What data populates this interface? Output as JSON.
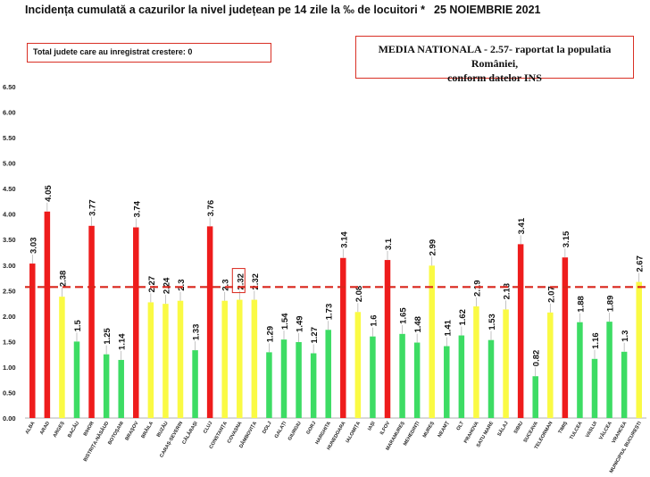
{
  "header": {
    "title": "Incidența cumulată a cazurilor la nivel județean pe 14 zile la ‰ de locuitori *",
    "date": "25 NOIEMBRIE 2021"
  },
  "notes": {
    "increase_box": "Total judete care au inregistrat crestere: 0",
    "national_line1": "MEDIA NATIONALA - 2.57-  raportat la populatia României,",
    "national_line2": "conform datelor INS"
  },
  "colors": {
    "red": "#ee1c1c",
    "yellow": "#fafa44",
    "green": "#3ddc64",
    "reference_line": "#d9261c",
    "axis_text": "#222222"
  },
  "chart_data": {
    "type": "bar",
    "categories": [
      "ALBA",
      "ARAD",
      "ARGEȘ",
      "BACĂU",
      "BIHOR",
      "BISTRIȚA-NĂSĂUD",
      "BOTOȘANI",
      "BRAȘOV",
      "BRĂILA",
      "BUZĂU",
      "CARAȘ-SEVERIN",
      "CĂLĂRAȘI",
      "CLUJ",
      "CONSTANȚA",
      "COVASNA",
      "DÂMBOVIȚA",
      "DOLJ",
      "GALAȚI",
      "GIURGIU",
      "GORJ",
      "HARGHITA",
      "HUNEDOARA",
      "IALOMIȚA",
      "IAȘI",
      "ILFOV",
      "MARAMUREȘ",
      "MEHEDINȚI",
      "MUREȘ",
      "NEAMȚ",
      "OLT",
      "PRAHOVA",
      "SATU MARE",
      "SĂLAJ",
      "SIBIU",
      "SUCEAVA",
      "TELEORMAN",
      "TIMIȘ",
      "TULCEA",
      "VASLUI",
      "VÂLCEA",
      "VRANCEA",
      "MUNICIPIUL BUCUREȘTI"
    ],
    "values": [
      3.03,
      4.05,
      2.38,
      1.5,
      3.77,
      1.25,
      1.14,
      3.74,
      2.27,
      2.24,
      2.3,
      1.33,
      3.76,
      2.3,
      2.32,
      2.32,
      1.29,
      1.54,
      1.49,
      1.27,
      1.73,
      3.14,
      2.08,
      1.6,
      3.1,
      1.65,
      1.48,
      2.99,
      1.41,
      1.62,
      2.19,
      1.53,
      2.13,
      3.41,
      0.82,
      2.07,
      3.15,
      1.88,
      1.16,
      1.89,
      1.3,
      2.67
    ],
    "value_labels": [
      "3.03",
      "4.05",
      "2.38",
      "1.5",
      "3.77",
      "1.25",
      "1.14",
      "3.74",
      "2.27",
      "2.24",
      "2.3",
      "1.33",
      "3.76",
      "2.3",
      "2.32",
      "2.32",
      "1.29",
      "1.54",
      "1.49",
      "1.27",
      "1.73",
      "3.14",
      "2.08",
      "1.6",
      "3.1",
      "1.65",
      "1.48",
      "2.99",
      "1.41",
      "1.62",
      "2.19",
      "1.53",
      "2.13",
      "3.41",
      "0.82",
      "2.07",
      "3.15",
      "1.88",
      "1.16",
      "1.89",
      "1.3",
      "2.67"
    ],
    "bar_colors": [
      "red",
      "red",
      "yellow",
      "green",
      "red",
      "green",
      "green",
      "red",
      "yellow",
      "yellow",
      "yellow",
      "green",
      "red",
      "yellow",
      "yellow",
      "yellow",
      "green",
      "green",
      "green",
      "green",
      "green",
      "red",
      "yellow",
      "green",
      "red",
      "green",
      "green",
      "yellow",
      "green",
      "green",
      "yellow",
      "green",
      "yellow",
      "red",
      "green",
      "yellow",
      "red",
      "green",
      "green",
      "green",
      "green",
      "yellow"
    ],
    "ylim": [
      0,
      6.5
    ],
    "yticks": [
      "0.00",
      "0.50",
      "1.00",
      "1.50",
      "2.00",
      "2.50",
      "3.00",
      "3.50",
      "4.00",
      "4.50",
      "5.00",
      "5.50",
      "6.00",
      "6.50"
    ],
    "reference_line": 2.57,
    "highlighted_label_index": 14,
    "grid": false
  }
}
